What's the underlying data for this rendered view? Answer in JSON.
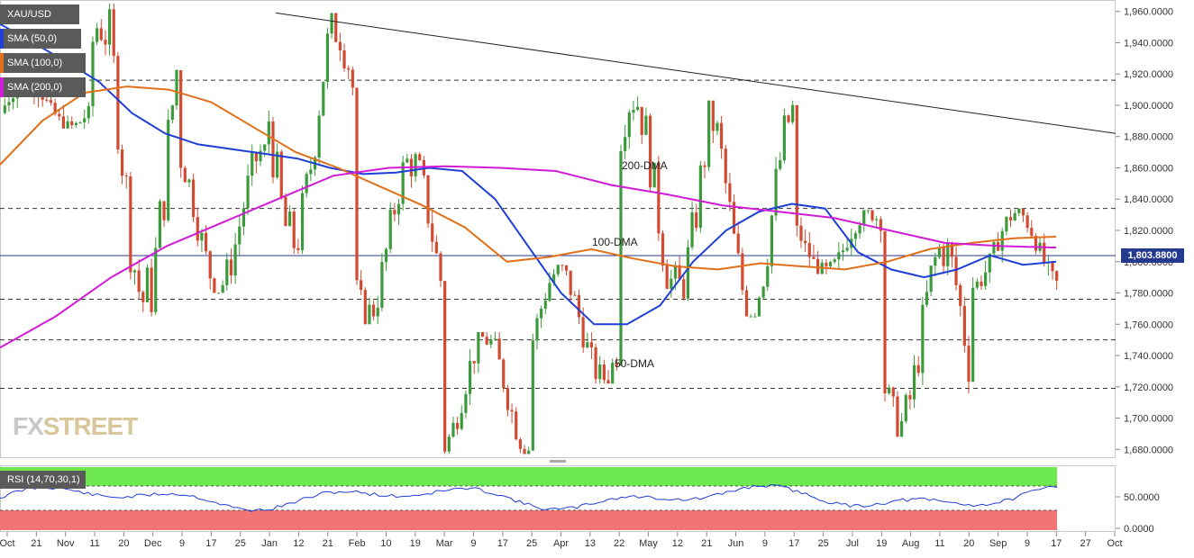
{
  "chart_data": {
    "type": "candlestick",
    "symbol": "XAU/USD",
    "current_price": "1,803.8800",
    "y_axis": {
      "range": [
        1675,
        1965
      ],
      "ticks": [
        "1,960.0000",
        "1,940.0000",
        "1,920.0000",
        "1,900.0000",
        "1,880.0000",
        "1,860.0000",
        "1,840.0000",
        "1,820.0000",
        "1,800.0000",
        "1,780.0000",
        "1,760.0000",
        "1,740.0000",
        "1,720.0000",
        "1,700.0000",
        "1,680.0000"
      ],
      "tick_values": [
        1960,
        1940,
        1920,
        1900,
        1880,
        1860,
        1840,
        1820,
        1800,
        1780,
        1760,
        1740,
        1720,
        1700,
        1680
      ]
    },
    "x_axis": {
      "labels": [
        "Oct",
        "21",
        "Nov",
        "11",
        "20",
        "Dec",
        "9",
        "17",
        "25",
        "Jan",
        "12",
        "21",
        "Feb",
        "10",
        "19",
        "Mar",
        "9",
        "17",
        "25",
        "Apr",
        "13",
        "22",
        "May",
        "12",
        "21",
        "Jun",
        "9",
        "17",
        "25",
        "Jul",
        "19",
        "Aug",
        "11",
        "20",
        "Sep",
        "9",
        "17",
        "27",
        "Oct"
      ]
    },
    "legend": [
      {
        "label": "XAU/USD",
        "color": "#5a5a5a"
      },
      {
        "label": "SMA (50,0)",
        "color": "#1f3fd6"
      },
      {
        "label": "SMA (100,0)",
        "color": "#e0701a"
      },
      {
        "label": "SMA (200,0)",
        "color": "#d21bd6"
      }
    ],
    "annotations": [
      "200-DMA",
      "100-DMA",
      "50-DMA"
    ],
    "horizontal_levels": [
      1916,
      1834,
      1776,
      1750,
      1719
    ],
    "trendline": {
      "from": [
        1959,
        "Jan"
      ],
      "to": [
        1882,
        "Oct"
      ]
    },
    "series": [
      {
        "name": "SMA (50,0)",
        "color": "#1f3fd6",
        "values": [
          1952,
          1940,
          1928,
          1915,
          1895,
          1882,
          1875,
          1872,
          1869,
          1866,
          1860,
          1856,
          1857,
          1860,
          1858,
          1840,
          1810,
          1780,
          1760,
          1760,
          1772,
          1800,
          1820,
          1832,
          1837,
          1834,
          1806,
          1795,
          1790,
          1795,
          1804,
          1798,
          1800
        ]
      },
      {
        "name": "SMA (100,0)",
        "color": "#e0701a",
        "values": [
          1862,
          1890,
          1908,
          1912,
          1910,
          1902,
          1886,
          1870,
          1860,
          1848,
          1836,
          1822,
          1800,
          1803,
          1808,
          1802,
          1797,
          1795,
          1799,
          1797,
          1795,
          1800,
          1808,
          1812,
          1815,
          1816
        ]
      },
      {
        "name": "SMA (200,0)",
        "color": "#d21bd6",
        "values": [
          1745,
          1765,
          1790,
          1810,
          1825,
          1840,
          1855,
          1860,
          1861,
          1860,
          1858,
          1849,
          1843,
          1836,
          1832,
          1828,
          1820,
          1812,
          1810,
          1809
        ]
      }
    ],
    "candles_monthly_ranges": [
      {
        "period": "Oct",
        "low": 1885,
        "high": 1915
      },
      {
        "period": "Nov",
        "low": 1765,
        "high": 1965
      },
      {
        "period": "Dec",
        "low": 1780,
        "high": 1875
      },
      {
        "period": "Jan",
        "low": 1805,
        "high": 1959
      },
      {
        "period": "Feb",
        "low": 1760,
        "high": 1870
      },
      {
        "period": "Mar",
        "low": 1677,
        "high": 1755
      },
      {
        "period": "Apr",
        "low": 1722,
        "high": 1798
      },
      {
        "period": "May",
        "low": 1775,
        "high": 1913
      },
      {
        "period": "Jun",
        "low": 1765,
        "high": 1903
      },
      {
        "period": "Jul",
        "low": 1792,
        "high": 1833
      },
      {
        "period": "Aug",
        "low": 1688,
        "high": 1815
      },
      {
        "period": "Sep",
        "low": 1782,
        "high": 1834
      }
    ]
  },
  "rsi": {
    "label": "RSI (14,70,30,1)",
    "ticks": [
      "50.0000",
      "0.0000"
    ],
    "overbought": 70,
    "oversold": 30,
    "overbought_color": "#6ee84f",
    "oversold_color": "#f47373"
  },
  "watermark": {
    "part1": "FX",
    "part2": "STREET"
  }
}
